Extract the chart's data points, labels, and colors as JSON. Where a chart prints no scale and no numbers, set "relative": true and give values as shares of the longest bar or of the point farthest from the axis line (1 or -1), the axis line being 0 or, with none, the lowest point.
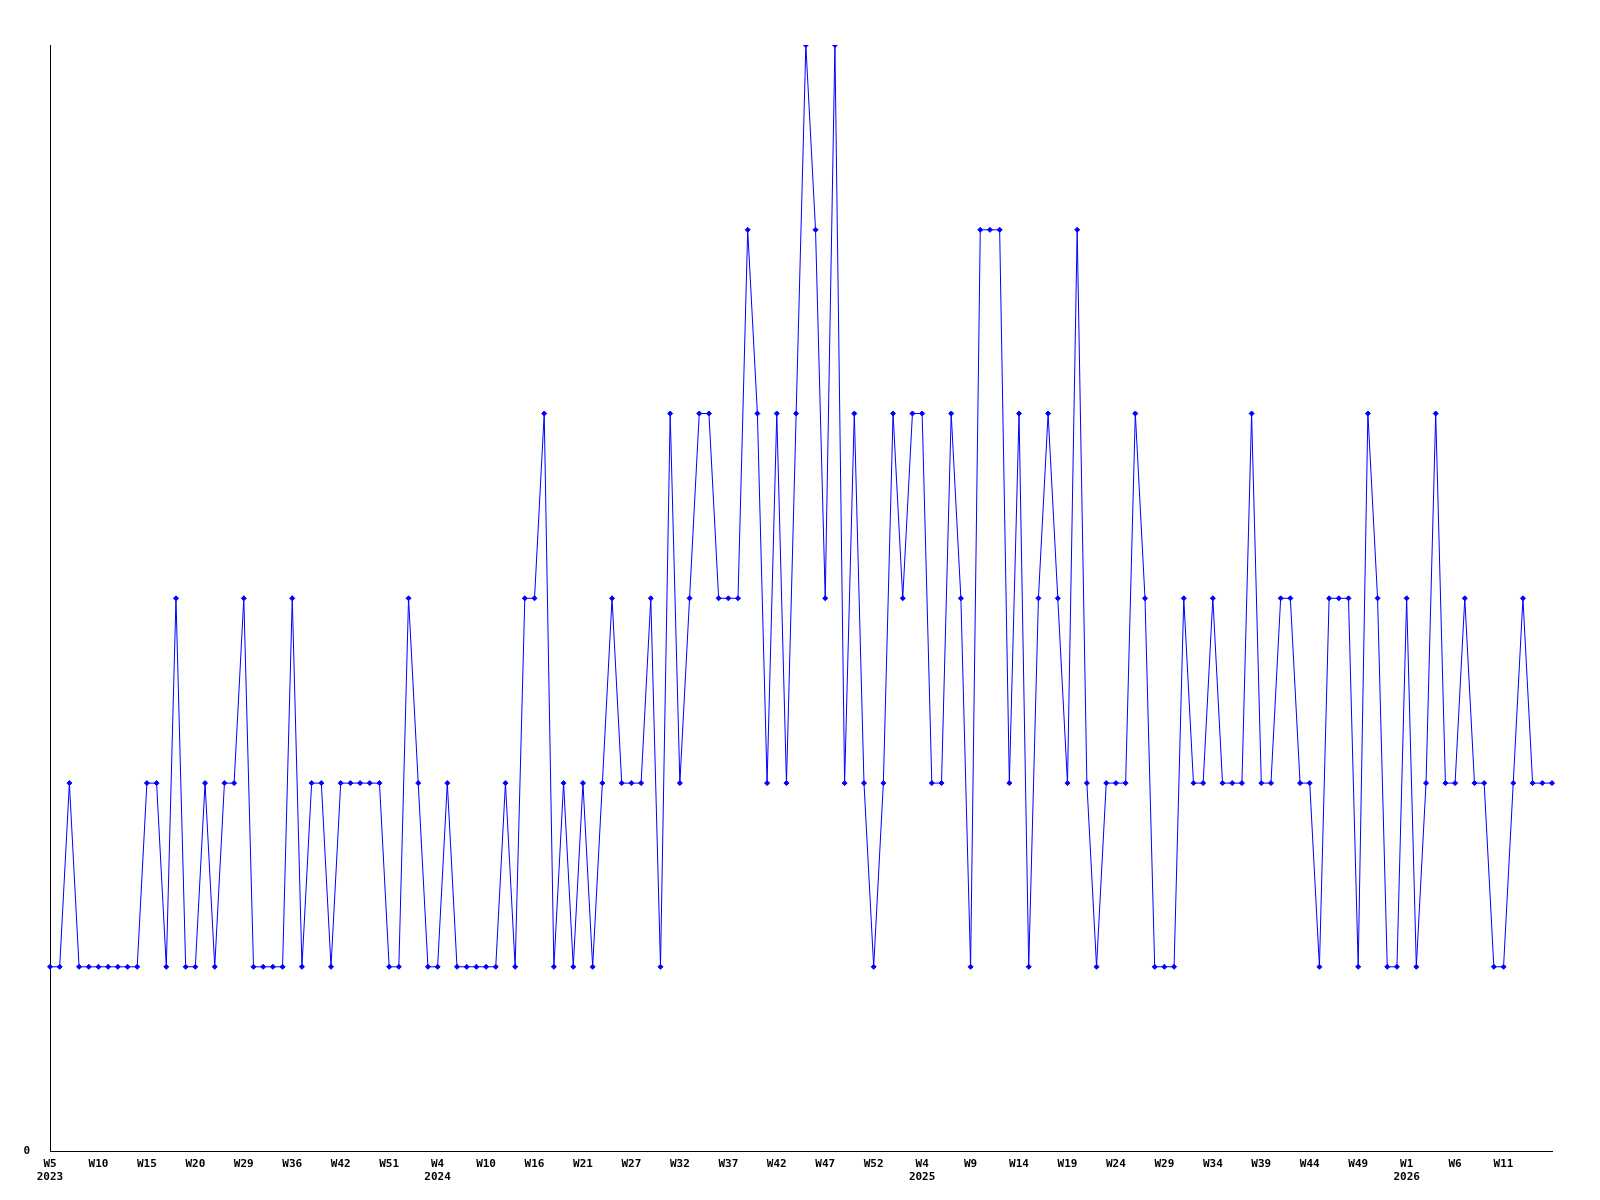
{
  "chart_data": {
    "type": "line",
    "relative": true,
    "annotations": [
      "0"
    ],
    "grid": false,
    "legend": false,
    "marker": "diamond",
    "line_style": "solid",
    "categories": [
      "W5\n2023",
      null,
      null,
      null,
      null,
      "W10",
      null,
      null,
      null,
      null,
      "W15",
      null,
      null,
      null,
      null,
      "W20",
      null,
      null,
      null,
      null,
      "W29",
      null,
      null,
      null,
      null,
      "W36",
      null,
      null,
      null,
      null,
      "W42",
      null,
      null,
      null,
      null,
      "W51",
      null,
      null,
      null,
      null,
      "W4\n2024",
      null,
      null,
      null,
      null,
      "W10",
      null,
      null,
      null,
      null,
      "W16",
      null,
      null,
      null,
      null,
      "W21",
      null,
      null,
      null,
      null,
      "W27",
      null,
      null,
      null,
      null,
      "W32",
      null,
      null,
      null,
      null,
      "W37",
      null,
      null,
      null,
      null,
      "W42",
      null,
      null,
      null,
      null,
      "W47",
      null,
      null,
      null,
      null,
      "W52",
      null,
      null,
      null,
      null,
      "W4\n2025",
      null,
      null,
      null,
      null,
      "W9",
      null,
      null,
      null,
      null,
      "W14",
      null,
      null,
      null,
      null,
      "W19",
      null,
      null,
      null,
      null,
      "W24",
      null,
      null,
      null,
      null,
      "W29",
      null,
      null,
      null,
      null,
      "W34",
      null,
      null,
      null,
      null,
      "W39",
      null,
      null,
      null,
      null,
      "W44",
      null,
      null,
      null,
      null,
      "W49",
      null,
      null,
      null,
      null,
      "W1\n2026",
      null,
      null,
      null,
      null,
      "W6",
      null,
      null,
      null,
      null,
      "W11",
      null,
      null,
      null,
      null,
      null
    ],
    "series": [
      {
        "color": "#0000ff",
        "values": [
          0.167,
          0.167,
          0.333,
          0.167,
          0.167,
          0.167,
          0.167,
          0.167,
          0.167,
          0.167,
          0.333,
          0.333,
          0.167,
          0.5,
          0.167,
          0.167,
          0.333,
          0.167,
          0.333,
          0.333,
          0.5,
          0.167,
          0.167,
          0.167,
          0.167,
          0.5,
          0.167,
          0.333,
          0.333,
          0.167,
          0.333,
          0.333,
          0.333,
          0.333,
          0.333,
          0.167,
          0.167,
          0.5,
          0.333,
          0.167,
          0.167,
          0.333,
          0.167,
          0.167,
          0.167,
          0.167,
          0.167,
          0.333,
          0.167,
          0.5,
          0.5,
          0.667,
          0.167,
          0.333,
          0.167,
          0.333,
          0.167,
          0.333,
          0.5,
          0.333,
          0.333,
          0.333,
          0.5,
          0.167,
          0.667,
          0.333,
          0.5,
          0.667,
          0.667,
          0.5,
          0.5,
          0.5,
          0.833,
          0.667,
          0.333,
          0.667,
          0.333,
          0.667,
          1,
          0.833,
          0.5,
          1,
          0.333,
          0.667,
          0.333,
          0.167,
          0.333,
          0.667,
          0.5,
          0.667,
          0.667,
          0.333,
          0.333,
          0.667,
          0.5,
          0.167,
          0.833,
          0.833,
          0.833,
          0.333,
          0.667,
          0.167,
          0.5,
          0.667,
          0.5,
          0.333,
          0.833,
          0.333,
          0.167,
          0.333,
          0.333,
          0.333,
          0.667,
          0.5,
          0.167,
          0.167,
          0.167,
          0.5,
          0.333,
          0.333,
          0.5,
          0.333,
          0.333,
          0.333,
          0.667,
          0.333,
          0.333,
          0.5,
          0.5,
          0.333,
          0.333,
          0.167,
          0.5,
          0.5,
          0.5,
          0.167,
          0.667,
          0.5,
          0.167,
          0.167,
          0.5,
          0.167,
          0.333,
          0.667,
          0.333,
          0.333,
          0.5,
          0.333,
          0.333,
          0.167,
          0.167,
          0.333,
          0.5,
          0.333,
          0.333,
          0.333
        ]
      }
    ]
  }
}
